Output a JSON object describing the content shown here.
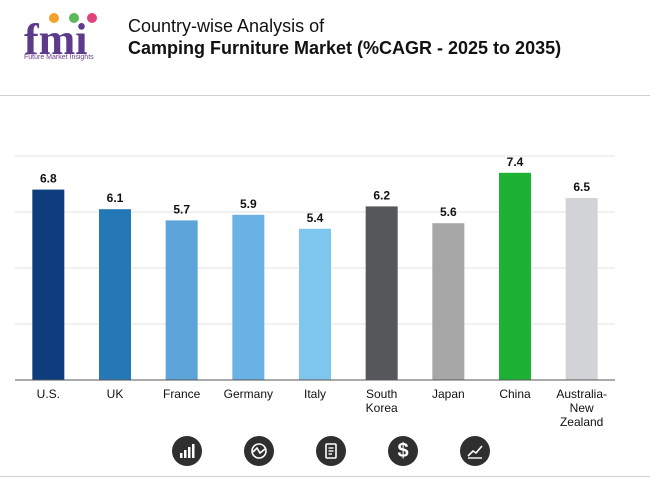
{
  "brand": {
    "logo_text": "fmi",
    "tagline": "Future Market Insights"
  },
  "title": {
    "line1": "Country-wise Analysis of",
    "line2": "Camping Furniture Market (%CAGR - 2025 to 2035)"
  },
  "chart_data": {
    "type": "bar",
    "categories": [
      "U.S.",
      "UK",
      "France",
      "Germany",
      "Italy",
      "South Korea",
      "Japan",
      "China",
      "Australia-New Zealand"
    ],
    "category_lines": [
      [
        "U.S."
      ],
      [
        "UK"
      ],
      [
        "France"
      ],
      [
        "Germany"
      ],
      [
        "Italy"
      ],
      [
        "South",
        "Korea"
      ],
      [
        "Japan"
      ],
      [
        "China"
      ],
      [
        "Australia-",
        "New",
        "Zealand"
      ]
    ],
    "values": [
      6.8,
      6.1,
      5.7,
      5.9,
      5.4,
      6.2,
      5.6,
      7.4,
      6.5
    ],
    "value_labels": [
      "6.8",
      "6.1",
      "5.7",
      "5.9",
      "5.4",
      "6.2",
      "5.6",
      "7.4",
      "6.5"
    ],
    "bar_colors": [
      "#0d3d7d",
      "#2378b5",
      "#5ba3d9",
      "#6ab2e6",
      "#7ec6ee",
      "#56575b",
      "#a6a6a6",
      "#1db233",
      "#d1d3d6"
    ],
    "ylim": [
      0,
      8
    ],
    "gridlines": true,
    "title": "",
    "xlabel": "",
    "ylabel": ""
  },
  "footer_icons": [
    "bar-growth-icon",
    "chart-circle-icon",
    "report-icon",
    "dollar-icon",
    "trend-icon"
  ]
}
